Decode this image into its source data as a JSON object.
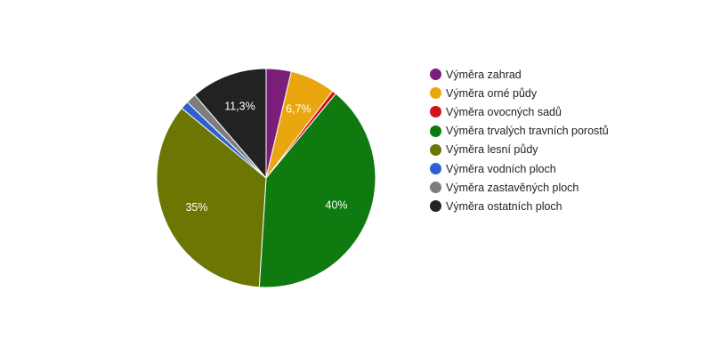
{
  "chart_data": {
    "type": "pie",
    "title": "",
    "legend_position": "right",
    "slices": [
      {
        "name": "Výměra zahrad",
        "value": 3.7,
        "color": "#7b1e7a",
        "label": ""
      },
      {
        "name": "Výměra orné půdy",
        "value": 6.7,
        "color": "#e9a60f",
        "label": "6,7%"
      },
      {
        "name": "Výměra ovocných sadů",
        "value": 0.6,
        "color": "#d1121b",
        "label": ""
      },
      {
        "name": "Výměra trvalých travních porostů",
        "value": 40.0,
        "color": "#0f7a0f",
        "label": "40%"
      },
      {
        "name": "Výměra lesní půdy",
        "value": 35.0,
        "color": "#6c7602",
        "label": "35%"
      },
      {
        "name": "Výměra vodních ploch",
        "value": 1.2,
        "color": "#2e5fd1",
        "label": ""
      },
      {
        "name": "Výměra zastavěných ploch",
        "value": 1.5,
        "color": "#7d7d7d",
        "label": ""
      },
      {
        "name": "Výměra ostatních ploch",
        "value": 11.3,
        "color": "#222222",
        "label": "11,3%"
      }
    ]
  }
}
